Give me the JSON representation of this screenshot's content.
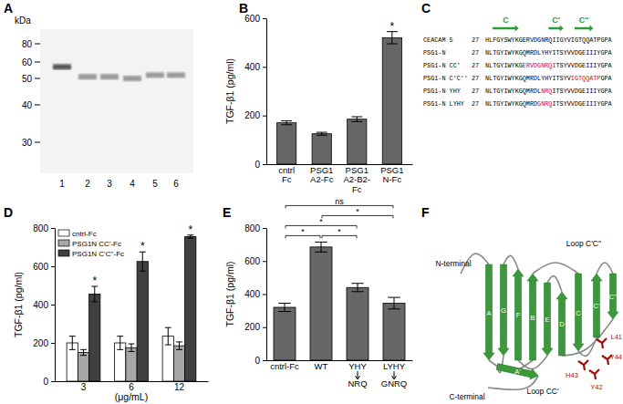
{
  "panel_labels": [
    "A",
    "B",
    "C",
    "D",
    "E",
    "F"
  ],
  "gel": {
    "unit_label": "kDa",
    "marker_ticks": [
      80,
      60,
      50,
      40,
      30
    ],
    "lanes": [
      "1",
      "2",
      "3",
      "4",
      "5",
      "6"
    ],
    "band_kda": [
      57,
      51,
      51,
      50,
      52,
      52
    ]
  },
  "chart_data": [
    {
      "type": "bar",
      "y_label": "TGF-β1 (pg/ml)",
      "categories": [
        "cntrl\nFc",
        "PSG1\nA2-Fc",
        "PSG1\nA2-B2-\nFc",
        "PSG1\nN-Fc"
      ],
      "values": [
        170,
        125,
        185,
        520
      ],
      "errors": [
        8,
        6,
        10,
        25
      ],
      "significance": [
        null,
        null,
        null,
        "*"
      ],
      "color": "#666666",
      "ylim": [
        0,
        600
      ],
      "yticks": [
        0,
        200,
        400,
        600
      ]
    },
    {
      "type": "bar",
      "y_label": "TGF-β1 (pg/ml)",
      "x_label": "(μg/mL)",
      "categories": [
        "3",
        "6",
        "12"
      ],
      "series": [
        {
          "name": "cntrl-Fc",
          "color": "#ffffff",
          "values": [
            200,
            200,
            235
          ],
          "errors": [
            35,
            35,
            45
          ]
        },
        {
          "name": "PSG1N CC'-Fc",
          "color": "#a6a6a6",
          "values": [
            150,
            175,
            185
          ],
          "errors": [
            15,
            20,
            20
          ]
        },
        {
          "name": "PSG1N C'C''-Fc",
          "color": "#404040",
          "values": [
            455,
            625,
            755
          ],
          "errors": [
            40,
            50,
            8
          ],
          "significance": [
            "*",
            "*",
            "*"
          ]
        }
      ],
      "ylim": [
        0,
        800
      ],
      "yticks": [
        0,
        200,
        400,
        600,
        800
      ],
      "legend": "top-left"
    },
    {
      "type": "bar",
      "y_label": "TGF-β1 (pg/ml)",
      "categories": [
        "cntrl-Fc",
        "WT",
        "YHY\nNRQ",
        "LYHY\nGNRQ"
      ],
      "values": [
        320,
        685,
        440,
        345
      ],
      "errors": [
        25,
        30,
        25,
        35
      ],
      "color": "#666666",
      "ylim": [
        0,
        800
      ],
      "yticks": [
        0,
        200,
        400,
        600,
        800
      ],
      "comparisons": [
        {
          "from": 0,
          "to": 3,
          "label": "ns"
        },
        {
          "from": 0,
          "to": 2,
          "label": "*"
        },
        {
          "from": 1,
          "to": 3,
          "label": "*"
        },
        {
          "from": 0,
          "to": 1,
          "label": "*"
        },
        {
          "from": 1,
          "to": 2,
          "label": "*"
        }
      ]
    }
  ],
  "alignment": {
    "arrows": [
      "C",
      "C'",
      "C''"
    ],
    "rows": [
      {
        "name": "CEACAM 5",
        "start": "27",
        "segments": [
          {
            "text": "HLFGYSWYKGERVDGNRQIIGYVIGTQQATPGPA"
          }
        ]
      },
      {
        "name": "PSG1-N",
        "start": "27",
        "segments": [
          {
            "text": "NLTGYIWYKGQMRDLYHYITSYVVDGEIIIYGPA"
          }
        ]
      },
      {
        "name": "PSG1-N CC'",
        "start": "27",
        "segments": [
          {
            "text": "NLTGYIWYKG"
          },
          {
            "text": "ERVDGNRQI",
            "color": "#e00000"
          },
          {
            "text": "TSYVVDGEIIIYGPA"
          }
        ]
      },
      {
        "name": "PSG1-N C'C''",
        "start": "27",
        "segments": [
          {
            "text": "NLTGYIWYKGQMRDLYHYITSYV"
          },
          {
            "text": "IGTQQATP",
            "color": "#e00000"
          },
          {
            "text": "GPA"
          }
        ]
      },
      {
        "name": "PSG1-N YHY",
        "start": "27",
        "segments": [
          {
            "text": "NLTGYIWYKGQMRDL"
          },
          {
            "text": "NRQ",
            "color": "#e00000"
          },
          {
            "text": "ITSYVVDGEIIIYGPA"
          }
        ]
      },
      {
        "name": "PSG1-N LYHY",
        "start": "27",
        "segments": [
          {
            "text": "NLTGYIWYKGQMRD"
          },
          {
            "text": "GNRQ",
            "color": "#e00000"
          },
          {
            "text": "ITSYVVDGEIIIYGPA"
          }
        ]
      }
    ]
  },
  "structure": {
    "strands": [
      "A",
      "B",
      "C",
      "C'",
      "C''",
      "D",
      "E",
      "F",
      "G",
      "A'"
    ],
    "loops": [
      "Loop C'C''",
      "Loop CC'"
    ],
    "termini": [
      "N-terminal",
      "C-terminal"
    ],
    "residues": [
      "L41",
      "Y42",
      "H43",
      "Y44"
    ]
  }
}
